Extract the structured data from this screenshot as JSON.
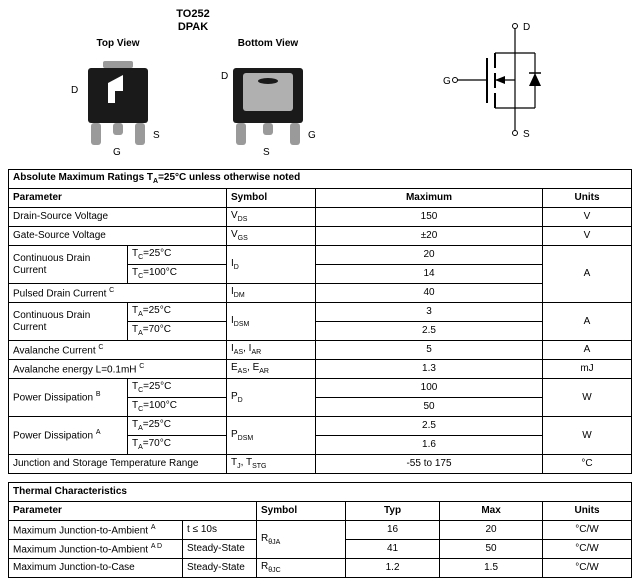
{
  "package": {
    "title_line1": "TO252",
    "title_line2": "DPAK",
    "top_view_label": "Top View",
    "bottom_view_label": "Bottom View",
    "pins": {
      "d": "D",
      "g": "G",
      "s": "S"
    }
  },
  "schematic_pins": {
    "d": "D",
    "g": "G",
    "s": "S"
  },
  "ratings": {
    "title": "Absolute Maximum Ratings  T",
    "title_sub": "A",
    "title_after": "=25°C unless otherwise noted",
    "headers": {
      "param": "Parameter",
      "symbol": "Symbol",
      "max": "Maximum",
      "units": "Units"
    },
    "rows": [
      {
        "param": "Drain-Source Voltage",
        "symbol": "V<sub>DS</sub>",
        "max": "150",
        "units": "V"
      },
      {
        "param": "Gate-Source Voltage",
        "symbol": "V<sub>GS</sub>",
        "max": "±20",
        "units": "V"
      },
      {
        "param": "Continuous Drain Current",
        "cond1": "T<sub>C</sub>=25°C",
        "cond2": "T<sub>C</sub>=100°C",
        "symbol": "I<sub>D</sub>",
        "max1": "20",
        "max2": "14",
        "units": "A"
      },
      {
        "param": "Pulsed Drain Current <sup>C</sup>",
        "symbol": "I<sub>DM</sub>",
        "max": "40"
      },
      {
        "param": "Continuous Drain Current",
        "cond1": "T<sub>A</sub>=25°C",
        "cond2": "T<sub>A</sub>=70°C",
        "symbol": "I<sub>DSM</sub>",
        "max1": "3",
        "max2": "2.5",
        "units": "A"
      },
      {
        "param": "Avalanche Current <sup>C</sup>",
        "symbol": "I<sub>AS</sub>, I<sub>AR</sub>",
        "max": "5",
        "units": "A"
      },
      {
        "param": "Avalanche energy L=0.1mH <sup>C</sup>",
        "symbol": "E<sub>AS</sub>, E<sub>AR</sub>",
        "max": "1.3",
        "units": "mJ"
      },
      {
        "param": "Power Dissipation <sup>B</sup>",
        "cond1": "T<sub>C</sub>=25°C",
        "cond2": "T<sub>C</sub>=100°C",
        "symbol": "P<sub>D</sub>",
        "max1": "100",
        "max2": "50",
        "units": "W"
      },
      {
        "param": "Power Dissipation <sup>A</sup>",
        "cond1": "T<sub>A</sub>=25°C",
        "cond2": "T<sub>A</sub>=70°C",
        "symbol": "P<sub>DSM</sub>",
        "max1": "2.5",
        "max2": "1.6",
        "units": "W"
      },
      {
        "param": "Junction and Storage Temperature Range",
        "symbol": "T<sub>J</sub>, T<sub>STG</sub>",
        "max": "-55 to 175",
        "units": "°C"
      }
    ]
  },
  "thermal": {
    "title": "Thermal Characteristics",
    "headers": {
      "param": "Parameter",
      "symbol": "Symbol",
      "typ": "Typ",
      "max": "Max",
      "units": "Units"
    },
    "rows": [
      {
        "param": "Maximum Junction-to-Ambient <sup>A</sup>",
        "cond": "t ≤ 10s",
        "symbol": "R<sub>θJA</sub>",
        "typ": "16",
        "max": "20",
        "units": "°C/W"
      },
      {
        "param": "Maximum Junction-to-Ambient <sup>A D</sup>",
        "cond": "Steady-State",
        "typ": "41",
        "max": "50",
        "units": "°C/W"
      },
      {
        "param": "Maximum Junction-to-Case",
        "cond": "Steady-State",
        "symbol": "R<sub>θJC</sub>",
        "typ": "1.2",
        "max": "1.5",
        "units": "°C/W"
      }
    ]
  },
  "colors": {
    "pkg_body": "#1a1a1a",
    "pkg_tab": "#b0b0b0",
    "pkg_lead": "#9a9a9a",
    "line": "#000000",
    "bg": "#ffffff"
  }
}
